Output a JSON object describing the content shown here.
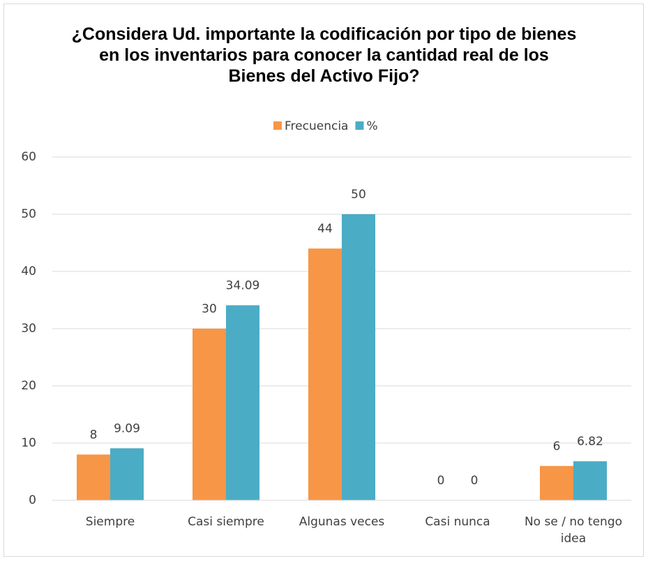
{
  "chart_data": {
    "type": "bar",
    "title": "¿Considera Ud. importante la codificación por tipo de bienes en los inventarios para conocer la cantidad real de los Bienes del Activo Fijo?",
    "categories": [
      "Siempre",
      "Casi siempre",
      "Algunas veces",
      "Casi nunca",
      "No se / no tengo idea"
    ],
    "series": [
      {
        "name": "Frecuencia",
        "color": "#f79646",
        "values": [
          8,
          30,
          44,
          0,
          6
        ]
      },
      {
        "name": "%",
        "color": "#4bacc6",
        "values": [
          9.09,
          34.09,
          50,
          0,
          6.82
        ]
      }
    ],
    "ylim": [
      0,
      60
    ],
    "yticks": [
      0,
      10,
      20,
      30,
      40,
      50,
      60
    ],
    "grid": true,
    "legend": "top"
  }
}
